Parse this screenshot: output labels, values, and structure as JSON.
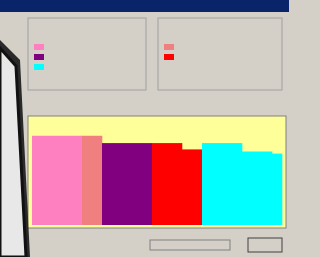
{
  "chart_data": {
    "type": "bar",
    "categories": [
      null,
      null,
      null,
      null,
      null,
      null,
      null,
      null,
      null,
      null,
      null,
      null,
      null,
      null,
      null,
      null,
      null,
      null,
      null,
      null,
      null,
      null,
      null,
      null,
      null
    ],
    "values": [
      85,
      85,
      85,
      85,
      85,
      85,
      85,
      78,
      78,
      78,
      78,
      78,
      78,
      78,
      78,
      72,
      72,
      78,
      78,
      78,
      78,
      70,
      70,
      70,
      68
    ],
    "colors": [
      "#ff80c0",
      "#ff80c0",
      "#ff80c0",
      "#ff80c0",
      "#ff80c0",
      "#f08080",
      "#f08080",
      "#800080",
      "#800080",
      "#800080",
      "#800080",
      "#800080",
      "#ff0000",
      "#ff0000",
      "#ff0000",
      "#ff0000",
      "#ff0000",
      "#00ffff",
      "#00ffff",
      "#00ffff",
      "#00ffff",
      "#00ffff",
      "#00ffff",
      "#00ffff",
      "#00ffff"
    ],
    "ylim": [
      0,
      100
    ]
  }
}
